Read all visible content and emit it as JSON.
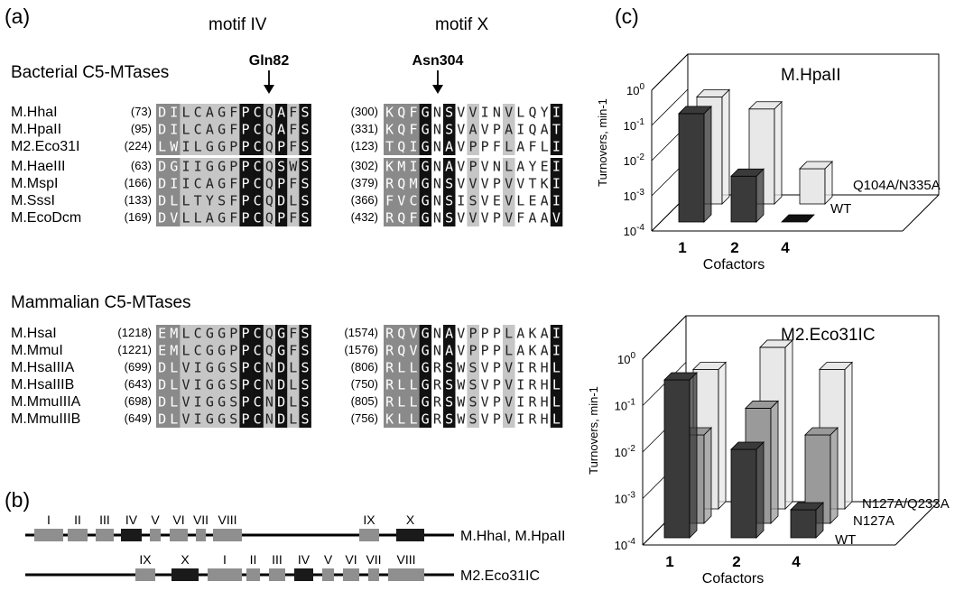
{
  "panel_a": {
    "label": "(a)",
    "motif_iv_title": "motif IV",
    "motif_x_title": "motif X",
    "marker_iv": "Gln82",
    "marker_x": "Asn304",
    "groups": [
      {
        "title": "Bacterial C5-MTases",
        "blocks": [
          [
            {
              "name": "M.HhaI",
              "pos4": "(73)",
              "seq4": "DILCAGFPCQAFS",
              "pos10": "(300)",
              "seq10": "KQFGNSVVINVLQYI"
            },
            {
              "name": "M.HpaII",
              "pos4": "(95)",
              "seq4": "DILCAGFPCQAFS",
              "pos10": "(331)",
              "seq10": "KQFGNSVAVPAIQAT"
            },
            {
              "name": "M2.Eco31I",
              "pos4": "(224)",
              "seq4": "LWILGGPPCQPFS",
              "pos10": "(123)",
              "seq10": "TQIGNAVPPFLAFLI"
            }
          ],
          [
            {
              "name": "M.HaeIII",
              "pos4": "(63)",
              "seq4": "DGIIGGPPCQSWS",
              "pos10": "(302)",
              "seq10": "KMIGNAVPVNLAYEI"
            },
            {
              "name": "M.MspI",
              "pos4": "(166)",
              "seq4": "DIICAGFPCQPFS",
              "pos10": "(379)",
              "seq10": "RQMGNSVVVPVVTKI"
            },
            {
              "name": "M.SssI",
              "pos4": "(133)",
              "seq4": "DLLTYSFPCQDLS",
              "pos10": "(366)",
              "seq10": "FVCGNSISVEVLEAI"
            },
            {
              "name": "M.EcoDcm",
              "pos4": "(169)",
              "seq4": "DVLLAGFPCQPFS",
              "pos10": "(432)",
              "seq10": "RQFGNSVVVPVFAAV"
            }
          ]
        ]
      },
      {
        "title": "Mammalian C5-MTases",
        "blocks": [
          [
            {
              "name": "M.HsaI",
              "pos4": "(1218)",
              "seq4": "EMLCGGPPCQGFS",
              "pos10": "(1574)",
              "seq10": "RQVGNAVPPPLAKAI"
            },
            {
              "name": "M.MmuI",
              "pos4": "(1221)",
              "seq4": "EMLCGGPPCQGFS",
              "pos10": "(1576)",
              "seq10": "RQVGNAVPPPLAKAI"
            },
            {
              "name": "M.HsaIIIA",
              "pos4": "(699)",
              "seq4": "DLVIGGSPCNDLS",
              "pos10": "(806)",
              "seq10": "RLLGRSWSVPVIRHL"
            },
            {
              "name": "M.HsaIIIB",
              "pos4": "(643)",
              "seq4": "DLVIGGSPCNDLS",
              "pos10": "(750)",
              "seq10": "RLLGRSWSVPVIRHL"
            },
            {
              "name": "M.MmuIIIA",
              "pos4": "(698)",
              "seq4": "DLVIGGSPCNDLS",
              "pos10": "(805)",
              "seq10": "RLLGRSWSVPVIRHL"
            },
            {
              "name": "M.MmuIIIB",
              "pos4": "(649)",
              "seq4": "DLVIGGSPCNDLS",
              "pos10": "(756)",
              "seq10": "KLLGRSWSVPVIRHL"
            }
          ]
        ]
      }
    ],
    "shading_iv": [
      "m",
      "m",
      "l",
      "l",
      "l",
      "l",
      "l",
      "b",
      "b",
      "l",
      "b",
      "l",
      "b"
    ],
    "shading_x": [
      "m",
      "m",
      "m",
      "b",
      "w",
      "b",
      "w",
      "l",
      "w",
      "w",
      "l",
      "w",
      "w",
      "w",
      "b"
    ]
  },
  "panel_b": {
    "label": "(b)",
    "constructs": [
      {
        "name": "M.HhaI, M.HpaII",
        "motifs": [
          {
            "label": "I",
            "dark": false
          },
          {
            "label": "II",
            "dark": false
          },
          {
            "label": "III",
            "dark": false
          },
          {
            "label": "IV",
            "dark": true
          },
          {
            "label": "V",
            "dark": false
          },
          {
            "label": "VI",
            "dark": false
          },
          {
            "label": "VII",
            "dark": false
          },
          {
            "label": "VIII",
            "dark": false
          },
          {
            "label": "IX",
            "dark": false
          },
          {
            "label": "X",
            "dark": true
          }
        ]
      },
      {
        "name": "M2.Eco31IC",
        "motifs": [
          {
            "label": "IX",
            "dark": false
          },
          {
            "label": "X",
            "dark": true
          },
          {
            "label": "I",
            "dark": false
          },
          {
            "label": "II",
            "dark": false
          },
          {
            "label": "III",
            "dark": false
          },
          {
            "label": "IV",
            "dark": true
          },
          {
            "label": "V",
            "dark": false
          },
          {
            "label": "VI",
            "dark": false
          },
          {
            "label": "VII",
            "dark": false
          },
          {
            "label": "VIII",
            "dark": false
          }
        ]
      }
    ]
  },
  "panel_c": {
    "label": "(c)",
    "colors": {
      "dark": "#3a3a3a",
      "mid": "#9a9a9a",
      "light": "#e8e8e8"
    },
    "tick_base": "10",
    "tick_exps": [
      "0",
      "-1",
      "-2",
      "-3",
      "-4"
    ]
  },
  "chart_data": [
    {
      "type": "bar",
      "title": "M.HpaII",
      "xlabel": "Cofactors",
      "ylabel": "Turnovers, min-1",
      "yscale": "log",
      "ylim": [
        0.0001,
        1
      ],
      "categories": [
        "1",
        "2",
        "4"
      ],
      "series": [
        {
          "name": "WT",
          "values": [
            0.12,
            0.002,
            0.0001
          ]
        },
        {
          "name": "Q104A/N335A",
          "values": [
            0.11,
            0.05,
            0.001
          ]
        }
      ]
    },
    {
      "type": "bar",
      "title": "M2.Eco31IC",
      "xlabel": "Cofactors",
      "ylabel": "Turnovers, min-1",
      "yscale": "log",
      "ylim": [
        0.0001,
        1
      ],
      "categories": [
        "1",
        "2",
        "4"
      ],
      "series": [
        {
          "name": "WT",
          "values": [
            0.25,
            0.008,
            0.0004
          ]
        },
        {
          "name": "N127A",
          "values": [
            0.008,
            0.03,
            0.008
          ]
        },
        {
          "name": "N127A/Q233A",
          "values": [
            0.1,
            0.3,
            0.1
          ]
        }
      ]
    }
  ]
}
